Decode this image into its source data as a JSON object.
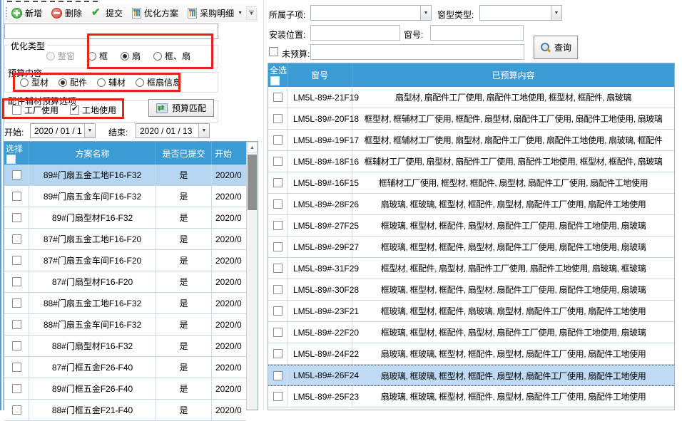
{
  "colors": {
    "header_blue": "#3B9BD5",
    "selected_row_left": "#B5D5F0",
    "selected_row_right": "#BEDAF4",
    "highlight_red": "#E1251B"
  },
  "toolbar": {
    "items": [
      {
        "label": "新增",
        "icon": "add-icon"
      },
      {
        "label": "删除",
        "icon": "remove-icon"
      },
      {
        "label": "提交",
        "icon": "check-icon"
      },
      {
        "label": "优化方案",
        "icon": "sheet-icon"
      },
      {
        "label": "采购明细",
        "icon": "sheet-icon",
        "dropdown": true
      }
    ]
  },
  "left": {
    "search": {
      "value": ""
    },
    "opt_type": {
      "label": "优化类型",
      "options": [
        {
          "label": "整窗",
          "disabled": true
        },
        {
          "label": "框"
        },
        {
          "label": "扇",
          "selected": true
        },
        {
          "label": "框、扇"
        }
      ]
    },
    "budget": {
      "label": "预算内容",
      "options": [
        {
          "label": "型材"
        },
        {
          "label": "配件",
          "selected": true
        },
        {
          "label": "辅材"
        },
        {
          "label": "框扇信息"
        }
      ]
    },
    "usage": {
      "label": "配件辅材预算选项",
      "options": [
        {
          "label": "工厂使用",
          "checked": false
        },
        {
          "label": "工地使用",
          "checked": true
        }
      ]
    },
    "match_button": "预算匹配",
    "dates": {
      "start_label": "开始:",
      "start_value": "2020 / 01 / 1",
      "end_label": "结束:",
      "end_value": "2020 / 01 / 13"
    },
    "table": {
      "headers": [
        "选择",
        "方案名称",
        "是否已提交",
        "开始"
      ],
      "selected_index": 0,
      "rows": [
        {
          "name": "89#门扇五金工地F16-F32",
          "submitted": "是",
          "start": "2020/0"
        },
        {
          "name": "89#门扇五金车间F16-F32",
          "submitted": "是",
          "start": "2020/0"
        },
        {
          "name": "89#门扇型材F16-F32",
          "submitted": "是",
          "start": "2020/0"
        },
        {
          "name": "87#门扇五金工地F16-F20",
          "submitted": "是",
          "start": "2020/0"
        },
        {
          "name": "87#门扇五金车间F16-F20",
          "submitted": "是",
          "start": "2020/0"
        },
        {
          "name": "87#门扇型材F16-F20",
          "submitted": "是",
          "start": "2020/0"
        },
        {
          "name": "88#门扇五金工地F16-F32",
          "submitted": "是",
          "start": "2020/0"
        },
        {
          "name": "88#门扇五金车间F16-F32",
          "submitted": "是",
          "start": "2020/0"
        },
        {
          "name": "88#门扇型材F16-F32",
          "submitted": "是",
          "start": "2020/0"
        },
        {
          "name": "87#门框五金F26-F40",
          "submitted": "是",
          "start": "2020/0"
        },
        {
          "name": "89#门框五金F26-F40",
          "submitted": "是",
          "start": "2020/0"
        },
        {
          "name": "88#门框五金F21-F40",
          "submitted": "是",
          "start": "2020/0"
        }
      ]
    }
  },
  "right": {
    "filters": {
      "sub_label": "所属子项:",
      "type_label": "窗型类型:",
      "pos_label": "安装位置:",
      "win_label": "窗号:",
      "nobudget_label": "未预算:",
      "nobudget_checked": false,
      "query": "查询"
    },
    "table": {
      "headers": [
        "全选",
        "窗号",
        "已预算内容"
      ],
      "selected_index": 13,
      "rows": [
        {
          "no": "LM5L-89#-21F19",
          "content": "扇型材, 扇配件工厂使用, 扇配件工地使用, 框型材, 框配件, 扇玻璃"
        },
        {
          "no": "LM5L-89#-20F18",
          "content": "框型材, 框辅材工厂使用, 框配件, 扇型材, 扇配件工厂使用, 扇配件工地使用, 扇玻璃"
        },
        {
          "no": "LM5L-89#-19F17",
          "content": "框型材, 框辅材工厂使用, 扇型材, 扇配件工厂使用, 扇配件工地使用, 扇玻璃, 框配件"
        },
        {
          "no": "LM5L-89#-18F16",
          "content": "框辅材工厂使用, 扇型材, 扇配件工厂使用, 扇配件工地使用, 框型材, 框配件, 扇玻璃"
        },
        {
          "no": "LM5L-89#-16F15",
          "content": "框辅材工厂使用, 框型材, 框配件, 扇型材, 扇配件工厂使用, 扇配件工地使用"
        },
        {
          "no": "LM5L-89#-28F26",
          "content": "扇玻璃, 框玻璃, 框型材, 框配件, 扇型材, 扇配件工厂使用, 扇配件工地使用"
        },
        {
          "no": "LM5L-89#-27F25",
          "content": "框玻璃, 框型材, 框配件, 扇型材, 扇配件工厂使用, 扇配件工地使用, 扇玻璃"
        },
        {
          "no": "LM5L-89#-29F27",
          "content": "框玻璃, 框型材, 框配件, 扇型材, 扇配件工厂使用, 扇配件工地使用, 扇玻璃"
        },
        {
          "no": "LM5L-89#-31F29",
          "content": "框型材, 框配件, 扇型材, 扇配件工厂使用, 扇配件工地使用, 扇玻璃, 框玻璃"
        },
        {
          "no": "LM5L-89#-30F28",
          "content": "框玻璃, 框型材, 框配件, 扇型材, 扇配件工厂使用, 扇配件工地使用, 扇玻璃"
        },
        {
          "no": "LM5L-89#-23F21",
          "content": "框玻璃, 框型材, 框配件, 扇玻璃, 扇型材, 扇配件工厂使用, 扇配件工地使用"
        },
        {
          "no": "LM5L-89#-22F20",
          "content": "框玻璃, 框型材, 框配件, 扇型材, 扇配件工厂使用, 扇配件工地使用, 扇玻璃"
        },
        {
          "no": "LM5L-89#-24F22",
          "content": "扇玻璃, 框玻璃, 框型材, 框配件, 扇型材, 扇配件工厂使用, 扇配件工地使用"
        },
        {
          "no": "LM5L-89#-26F24",
          "content": "扇玻璃, 框玻璃, 框型材, 框配件, 扇型材, 扇配件工厂使用, 扇配件工地使用"
        },
        {
          "no": "LM5L-89#-25F23",
          "content": "扇玻璃, 框玻璃, 框型材, 框配件, 扇型材, 扇配件工厂使用, 扇配件工地使用"
        }
      ]
    }
  }
}
